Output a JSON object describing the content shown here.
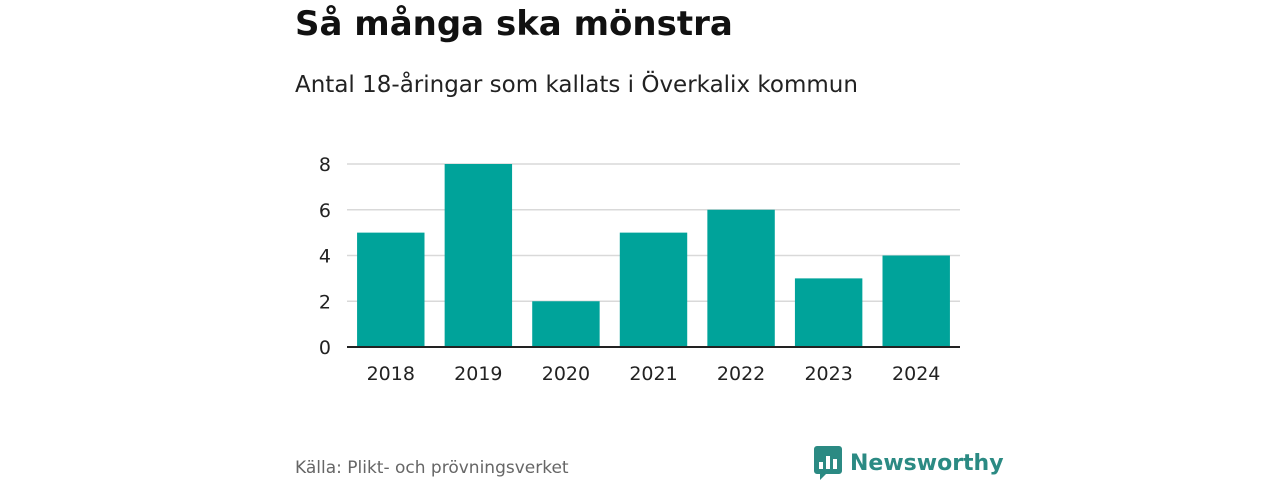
{
  "title": "Så många ska mönstra",
  "subtitle": "Antal 18-åringar som kallats i Överkalix kommun",
  "source": "Källa: Plikt- och prövningsverket",
  "brand": {
    "name": "Newsworthy",
    "color": "#2b8a83",
    "icon": "bar-chart-logo-icon"
  },
  "chart_data": {
    "type": "bar",
    "categories": [
      "2018",
      "2019",
      "2020",
      "2021",
      "2022",
      "2023",
      "2024"
    ],
    "values": [
      5,
      8,
      2,
      5,
      6,
      3,
      4
    ],
    "yticks": [
      0,
      2,
      4,
      6,
      8
    ],
    "ylim": [
      0,
      8
    ],
    "grid": true,
    "bar_color": "#00a39a",
    "xlabel": "",
    "ylabel": ""
  }
}
